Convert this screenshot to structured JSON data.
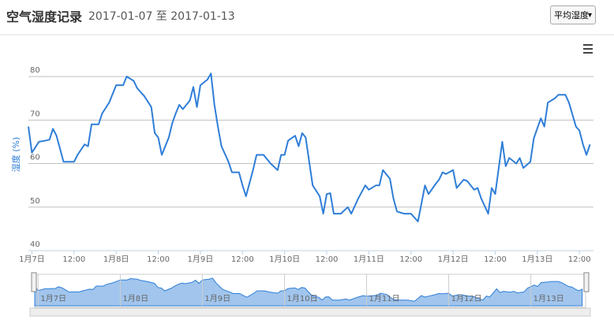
{
  "header": {
    "title": "空气湿度记录",
    "date_range": "2017-01-07 至 2017-01-13",
    "dropdown": "平均湿度"
  },
  "chart_data": {
    "type": "line",
    "y_label": "湿度 (%)",
    "x": [
      -1,
      0,
      2,
      4,
      5,
      6,
      7,
      9,
      12,
      13,
      15,
      16,
      17,
      19,
      20,
      22,
      24,
      26,
      27,
      29,
      30,
      32,
      34,
      35,
      36,
      37,
      39,
      40,
      41,
      42,
      43,
      45,
      46,
      47,
      48,
      50,
      51,
      52,
      53,
      54,
      56,
      57,
      59,
      60,
      61,
      63,
      64,
      66,
      68,
      70,
      71,
      72,
      73,
      75,
      76,
      77,
      78,
      79,
      80,
      82,
      83,
      84,
      85,
      86,
      88,
      90,
      91,
      93,
      95,
      96,
      98,
      99,
      100,
      102,
      103,
      104,
      106,
      108,
      110,
      112,
      113,
      115,
      116,
      117,
      118,
      120,
      121,
      123,
      124,
      126,
      127,
      128,
      130,
      131,
      132,
      134,
      135,
      136,
      138,
      139,
      140,
      142,
      143,
      145,
      146,
      147,
      149,
      150,
      152,
      153,
      155,
      156,
      157,
      158,
      159
    ],
    "series": [
      {
        "color": "#2f7ed8",
        "values": [
          68.5,
          62.5,
          65,
          65.3,
          65.5,
          68,
          66.4,
          60.4,
          60.4,
          62,
          64.4,
          64,
          69,
          69,
          71.5,
          74,
          78,
          78,
          80,
          79,
          77.3,
          75.5,
          73,
          67,
          66,
          62,
          66,
          69.3,
          71.6,
          73.5,
          72.5,
          74.5,
          77.6,
          73,
          78,
          79.3,
          80.7,
          73.5,
          68.5,
          64,
          60.4,
          58,
          58,
          55,
          52.5,
          58.5,
          62,
          62,
          60,
          58.5,
          62,
          62,
          65.3,
          66.4,
          64,
          67,
          66,
          60.4,
          55,
          52.5,
          48.5,
          53,
          53.2,
          48.5,
          48.5,
          50,
          48.5,
          52,
          55,
          54,
          55,
          55,
          58.5,
          56.5,
          52,
          49,
          48.5,
          48.5,
          46.7,
          55,
          53,
          55.3,
          56.3,
          58,
          57.6,
          58.5,
          54.4,
          56.3,
          56,
          54,
          54.4,
          52,
          48.5,
          54.4,
          53,
          65,
          59.4,
          61.3,
          60,
          61.3,
          59,
          60.4,
          65.8,
          70.4,
          68.5,
          74,
          75,
          75.8,
          75.8,
          74,
          68.5,
          67.6,
          64.4,
          62,
          64.4
        ]
      }
    ],
    "xlim": [
      -1,
      160
    ],
    "xticks": [
      {
        "value": 0,
        "label": "1月7日"
      },
      {
        "value": 12,
        "label": "12:00"
      },
      {
        "value": 24,
        "label": "1月8日"
      },
      {
        "value": 36,
        "label": "12:00"
      },
      {
        "value": 48,
        "label": "1月9日"
      },
      {
        "value": 60,
        "label": "12:00"
      },
      {
        "value": 72,
        "label": "1月10日"
      },
      {
        "value": 84,
        "label": "12:00"
      },
      {
        "value": 96,
        "label": "1月11日"
      },
      {
        "value": 108,
        "label": "12:00"
      },
      {
        "value": 120,
        "label": "1月12日"
      },
      {
        "value": 132,
        "label": "12:00"
      },
      {
        "value": 144,
        "label": "1月13日"
      },
      {
        "value": 156,
        "label": "12:00"
      }
    ],
    "ylim": [
      40,
      84
    ],
    "yticks": [
      40,
      50,
      60,
      70,
      80
    ],
    "grid": true
  }
}
